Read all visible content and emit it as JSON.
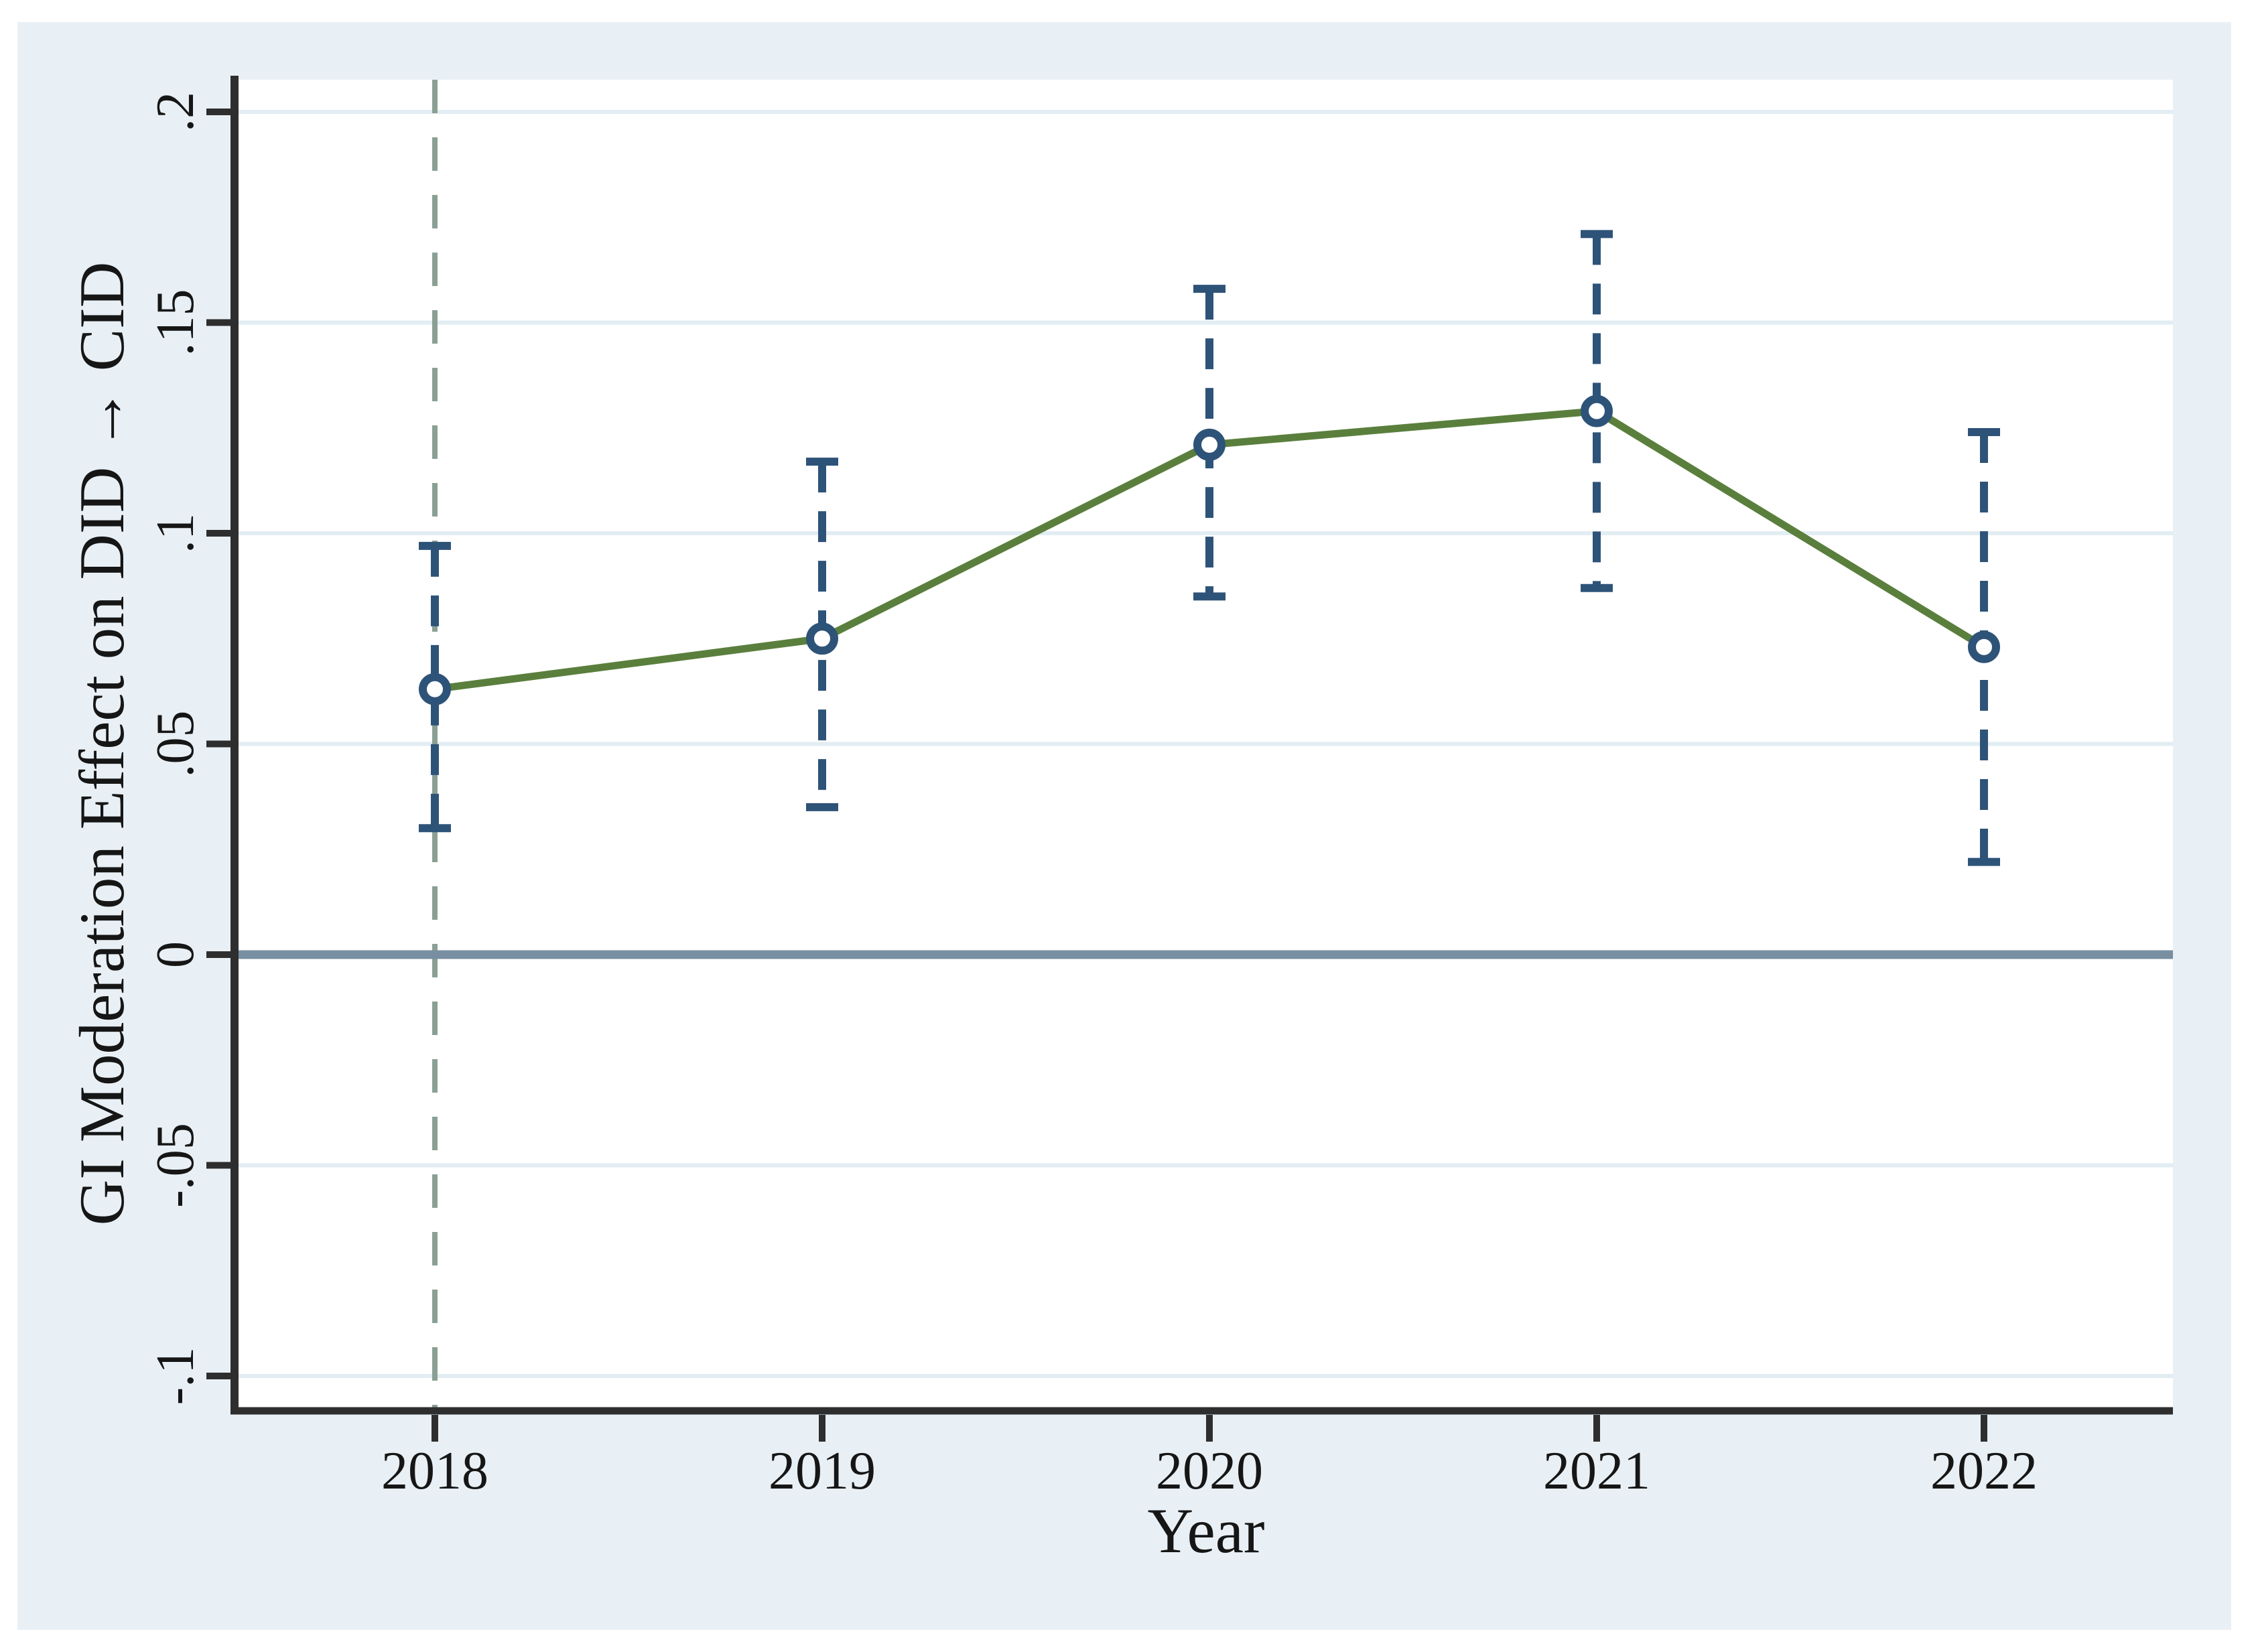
{
  "chart_data": {
    "type": "line",
    "title": "",
    "xlabel": "Year",
    "ylabel": "GI Moderation Effect on DID → CID",
    "categories": [
      "2018",
      "2019",
      "2020",
      "2021",
      "2022"
    ],
    "series": [
      {
        "name": "point-estimate",
        "values": [
          0.063,
          0.075,
          0.121,
          0.129,
          0.073
        ]
      },
      {
        "name": "ci-lower",
        "values": [
          0.03,
          0.035,
          0.085,
          0.087,
          0.022
        ]
      },
      {
        "name": "ci-upper",
        "values": [
          0.097,
          0.117,
          0.158,
          0.171,
          0.124
        ]
      }
    ],
    "yticks": [
      {
        "value": 0.2,
        "label": ".2"
      },
      {
        "value": 0.15,
        "label": ".15"
      },
      {
        "value": 0.1,
        "label": ".1"
      },
      {
        "value": 0.05,
        "label": ".05"
      },
      {
        "value": 0,
        "label": "0"
      },
      {
        "value": -0.05,
        "label": "-.05"
      },
      {
        "value": -0.1,
        "label": "-.1"
      }
    ],
    "ylim": [
      -0.107,
      0.207
    ],
    "grid": "horizontal-gridlines-on",
    "legend": "none",
    "reference_lines": {
      "vertical_dashed_at_category": "2018",
      "horizontal_solid_at_value": 0
    },
    "colors": {
      "panel_background": "#e9f0f5",
      "plot_background": "#ffffff",
      "gridline": "#e2edf3",
      "zero_line": "#788ea1",
      "vertical_reference_line": "#8ba095",
      "error_bar": "#2e5378",
      "series_line": "#5a7f3d",
      "marker_stroke": "#2e5378",
      "marker_fill": "#ffffff",
      "axis_spine": "#2e2e2e",
      "text": "#161616"
    }
  }
}
